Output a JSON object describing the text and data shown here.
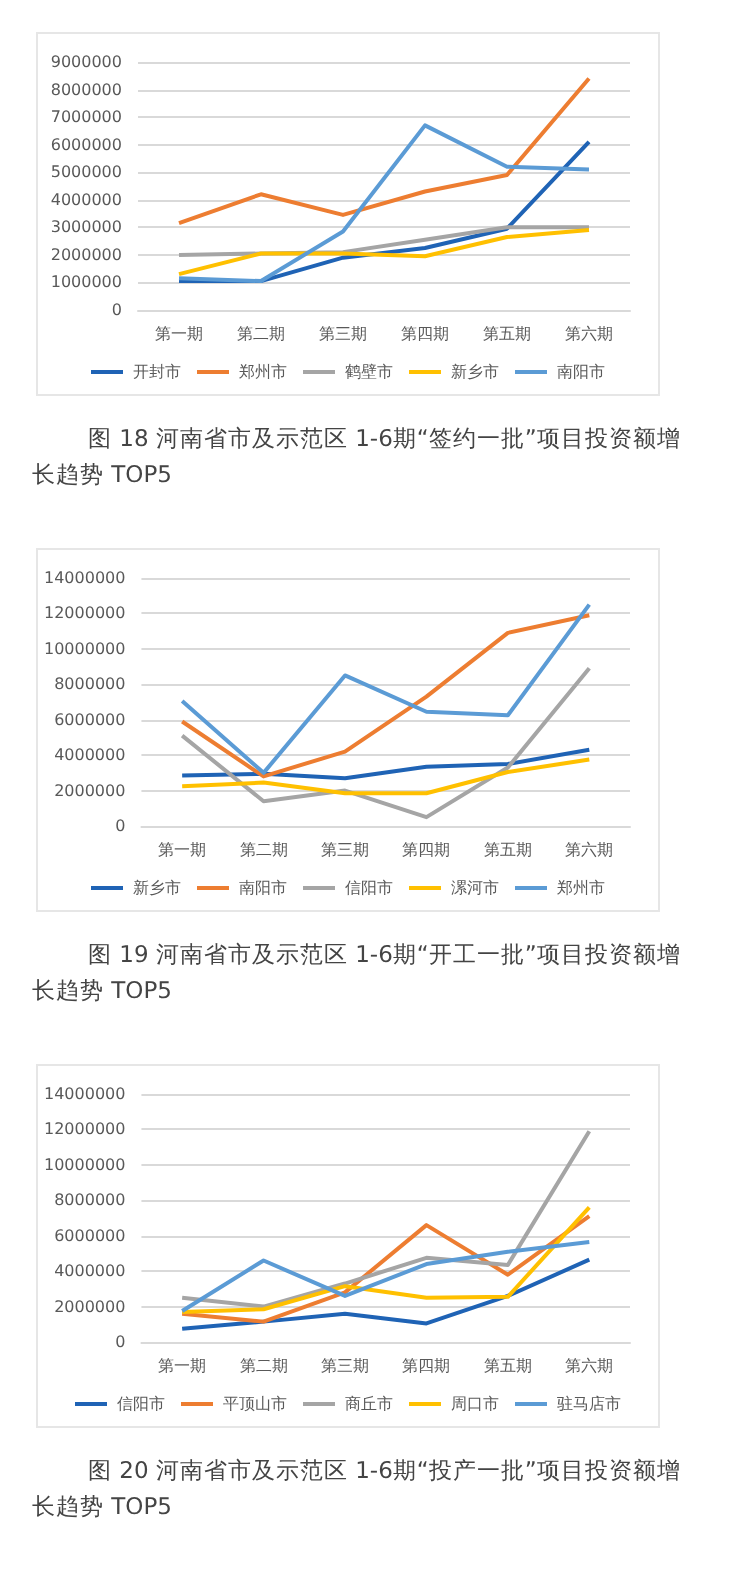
{
  "chart_data": [
    {
      "type": "line",
      "title": "图 18 河南省市及示范区 1-6期“签约一批”项目投资额增长趋势 TOP5",
      "categories": [
        "第一期",
        "第二期",
        "第三期",
        "第四期",
        "第五期",
        "第六期"
      ],
      "ylim": [
        0,
        9000000
      ],
      "yticks": [
        0,
        1000000,
        2000000,
        3000000,
        4000000,
        5000000,
        6000000,
        7000000,
        8000000,
        9000000
      ],
      "grid": "y",
      "legend": "bottom",
      "marker": "none",
      "series": [
        {
          "name": "开封市",
          "color": "#1f63b5",
          "values": [
            1050000,
            1050000,
            1900000,
            2250000,
            2950000,
            6100000
          ]
        },
        {
          "name": "郑州市",
          "color": "#ed7d31",
          "values": [
            3150000,
            4200000,
            3450000,
            4300000,
            4900000,
            8400000
          ]
        },
        {
          "name": "鹤壁市",
          "color": "#a5a5a5",
          "values": [
            2000000,
            2050000,
            2100000,
            2550000,
            3000000,
            3000000
          ]
        },
        {
          "name": "新乡市",
          "color": "#ffc000",
          "values": [
            1300000,
            2050000,
            2050000,
            1950000,
            2650000,
            2900000
          ]
        },
        {
          "name": "南阳市",
          "color": "#5b9bd5",
          "values": [
            1150000,
            1050000,
            2850000,
            6700000,
            5200000,
            5100000
          ]
        }
      ]
    },
    {
      "type": "line",
      "title": "图 19 河南省市及示范区 1-6期“开工一批”项目投资额增长趋势 TOP5",
      "categories": [
        "第一期",
        "第二期",
        "第三期",
        "第四期",
        "第五期",
        "第六期"
      ],
      "ylim": [
        0,
        14000000
      ],
      "yticks": [
        0,
        2000000,
        4000000,
        6000000,
        8000000,
        10000000,
        12000000,
        14000000
      ],
      "grid": "y",
      "legend": "bottom",
      "marker": "none",
      "series": [
        {
          "name": "新乡市",
          "color": "#1f63b5",
          "values": [
            2850000,
            2950000,
            2700000,
            3350000,
            3500000,
            4300000
          ]
        },
        {
          "name": "南阳市",
          "color": "#ed7d31",
          "values": [
            5900000,
            2800000,
            4200000,
            7300000,
            10900000,
            11900000
          ]
        },
        {
          "name": "信阳市",
          "color": "#a5a5a5",
          "values": [
            5100000,
            1400000,
            2000000,
            500000,
            3300000,
            8900000
          ]
        },
        {
          "name": "漯河市",
          "color": "#ffc000",
          "values": [
            2250000,
            2450000,
            1850000,
            1850000,
            3050000,
            3750000
          ]
        },
        {
          "name": "郑州市",
          "color": "#5b9bd5",
          "values": [
            7050000,
            3000000,
            8500000,
            6450000,
            6250000,
            12500000
          ]
        }
      ]
    },
    {
      "type": "line",
      "title": "图 20 河南省市及示范区 1-6期“投产一批”项目投资额增长趋势 TOP5",
      "categories": [
        "第一期",
        "第二期",
        "第三期",
        "第四期",
        "第五期",
        "第六期"
      ],
      "ylim": [
        0,
        14000000
      ],
      "yticks": [
        0,
        2000000,
        4000000,
        6000000,
        8000000,
        10000000,
        12000000,
        14000000
      ],
      "grid": "y",
      "legend": "bottom",
      "marker": "none",
      "series": [
        {
          "name": "信阳市",
          "color": "#1f63b5",
          "values": [
            750000,
            1150000,
            1600000,
            1050000,
            2600000,
            4650000
          ]
        },
        {
          "name": "平顶山市",
          "color": "#ed7d31",
          "values": [
            1600000,
            1150000,
            2800000,
            6600000,
            3800000,
            7100000
          ]
        },
        {
          "name": "商丘市",
          "color": "#a5a5a5",
          "values": [
            2500000,
            2000000,
            3300000,
            4750000,
            4350000,
            11900000
          ]
        },
        {
          "name": "周口市",
          "color": "#ffc000",
          "values": [
            1700000,
            1850000,
            3150000,
            2500000,
            2550000,
            7600000
          ]
        },
        {
          "name": "驻马店市",
          "color": "#5b9bd5",
          "values": [
            1750000,
            4600000,
            2600000,
            4400000,
            5100000,
            5650000
          ]
        }
      ]
    }
  ]
}
